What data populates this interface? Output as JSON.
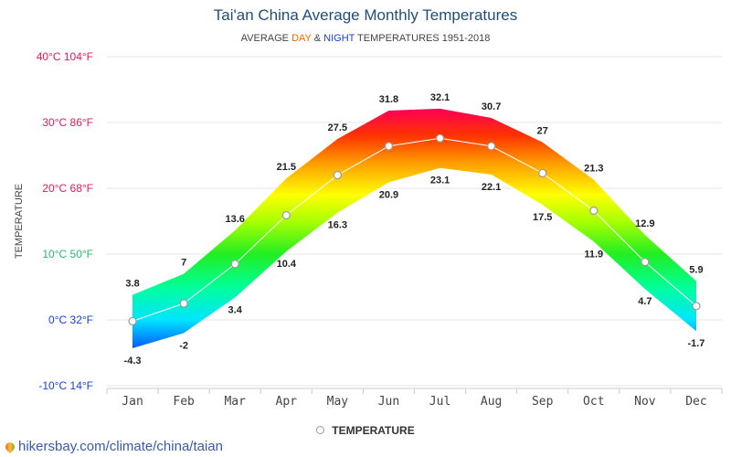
{
  "chart_data": {
    "type": "area",
    "title": "Tai'an China Average Monthly Temperatures",
    "subtitle": {
      "prefix": "AVERAGE",
      "day": "DAY",
      "amp": "&",
      "night": "NIGHT",
      "suffix": "TEMPERATURES 1951-2018"
    },
    "ylabel": "TEMPERATURE",
    "ylim": [
      -10,
      40
    ],
    "y_ticks": [
      {
        "value": 40,
        "label": "40°C 104°F",
        "color": "#e8175d"
      },
      {
        "value": 30,
        "label": "30°C 86°F",
        "color": "#e8175d"
      },
      {
        "value": 20,
        "label": "20°C 68°F",
        "color": "#e8175d"
      },
      {
        "value": 10,
        "label": "10°C 50°F",
        "color": "#2bb673"
      },
      {
        "value": 0,
        "label": "0°C 32°F",
        "color": "#1a3fd9"
      },
      {
        "value": -10,
        "label": "-10°C 14°F",
        "color": "#1a3fd9"
      }
    ],
    "categories": [
      "Jan",
      "Feb",
      "Mar",
      "Apr",
      "May",
      "Jun",
      "Jul",
      "Aug",
      "Sep",
      "Oct",
      "Nov",
      "Dec"
    ],
    "series": [
      {
        "key": "day",
        "values": [
          3.8,
          7,
          13.6,
          21.5,
          27.5,
          31.8,
          32.1,
          30.7,
          27,
          21.3,
          12.9,
          5.9
        ]
      },
      {
        "key": "night",
        "values": [
          -4.3,
          -2,
          3.4,
          10.4,
          16.3,
          20.9,
          23.1,
          22.1,
          17.5,
          11.9,
          4.7,
          -1.7
        ]
      },
      {
        "name": "TEMPERATURE",
        "values": [
          -0.2,
          2.5,
          8.5,
          15.9,
          22.0,
          26.4,
          27.6,
          26.4,
          22.3,
          16.6,
          8.8,
          2.1
        ]
      }
    ],
    "day_labels": [
      "3.8",
      "7",
      "13.6",
      "21.5",
      "27.5",
      "31.8",
      "32.1",
      "30.7",
      "27",
      "21.3",
      "12.9",
      "5.9"
    ],
    "night_labels": [
      "-4.3",
      "-2",
      "3.4",
      "10.4",
      "16.3",
      "20.9",
      "23.1",
      "22.1",
      "17.5",
      "11.9",
      "4.7",
      "-1.7"
    ],
    "legend": {
      "label": "TEMPERATURE",
      "placement": "bottom"
    },
    "grid": true
  },
  "footer": {
    "link_text": "hikersbay.com/climate/china/taian",
    "icon": "map-pin-icon"
  }
}
